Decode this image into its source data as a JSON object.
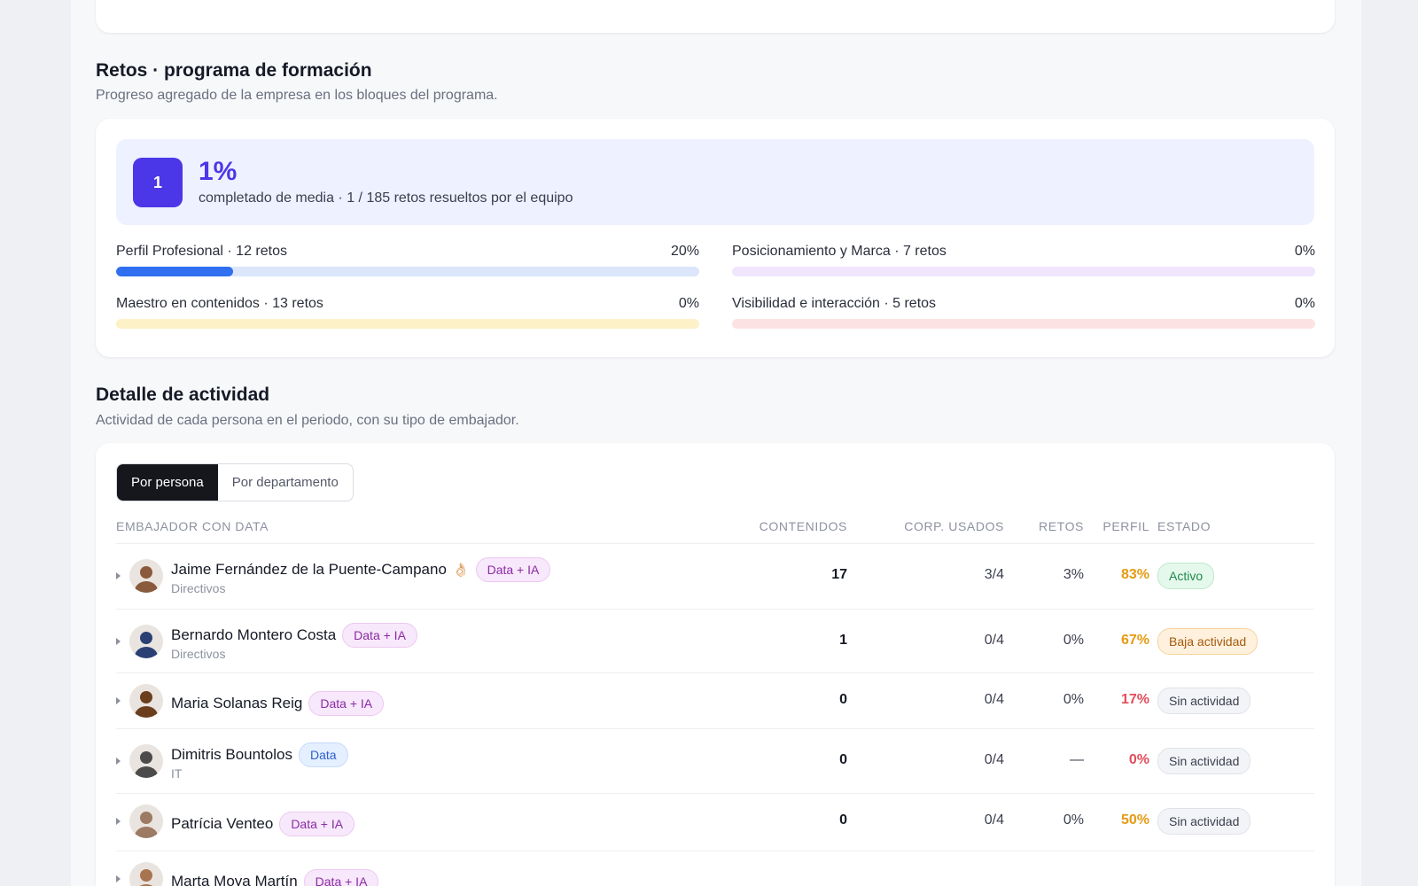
{
  "challenges": {
    "title": "Retos · programa de formación",
    "subtitle": "Progreso agregado de la empresa en los bloques del programa.",
    "summary": {
      "badge": "1",
      "percent": "1%",
      "text": "completado de media · 1 / 185 retos resueltos por el equipo"
    },
    "blocks": [
      {
        "label": "Perfil Profesional · 12 retos",
        "percent_label": "20%",
        "progress": 0.2,
        "track_color": "#dbe6fb",
        "fill_color": "#2f6ff0"
      },
      {
        "label": "Posicionamiento y Marca · 7 retos",
        "percent_label": "0%",
        "progress": 0.0,
        "track_color": "#f0e5fd",
        "fill_color": "#9b5cf0"
      },
      {
        "label": "Maestro en contenidos · 13 retos",
        "percent_label": "0%",
        "progress": 0.0,
        "track_color": "#fdf1c8",
        "fill_color": "#f0b400"
      },
      {
        "label": "Visibilidad e interacción · 5 retos",
        "percent_label": "0%",
        "progress": 0.0,
        "track_color": "#fde2e4",
        "fill_color": "#e84a5a"
      }
    ]
  },
  "activity": {
    "title": "Detalle de actividad",
    "subtitle": "Actividad de cada persona en el periodo, con su tipo de embajador.",
    "tabs": [
      "Por persona",
      "Por departamento"
    ],
    "columns": {
      "ambassador": "EMBAJADOR CON DATA",
      "contents": "CONTENIDOS",
      "corp": "CORP. USADOS",
      "retos": "RETOS",
      "perfil": "PERFIL",
      "estado": "ESTADO"
    },
    "rows": [
      {
        "name": "Jaime Fernández de la Puente-Campano",
        "emoji": "👌🏻",
        "tag": "Data + IA",
        "tag_type": "dataia",
        "dept": "Directivos",
        "contents": "17",
        "corp": "3/4",
        "retos": "3%",
        "perfil": "83%",
        "perfil_color": "#e59b12",
        "status": "Activo",
        "status_type": "activo",
        "avatar_color": "#8a5a3c"
      },
      {
        "name": "Bernardo Montero Costa",
        "emoji": "",
        "tag": "Data + IA",
        "tag_type": "dataia",
        "dept": "Directivos",
        "contents": "1",
        "corp": "0/4",
        "retos": "0%",
        "perfil": "67%",
        "perfil_color": "#e59b12",
        "status": "Baja actividad",
        "status_type": "baja",
        "avatar_color": "#2a3f73"
      },
      {
        "name": "Maria Solanas Reig",
        "emoji": "",
        "tag": "Data + IA",
        "tag_type": "dataia",
        "dept": "",
        "contents": "0",
        "corp": "0/4",
        "retos": "0%",
        "perfil": "17%",
        "perfil_color": "#e24d5c",
        "status": "Sin actividad",
        "status_type": "sin",
        "avatar_color": "#6b3e1e"
      },
      {
        "name": "Dimitris Bountolos",
        "emoji": "",
        "tag": "Data",
        "tag_type": "data",
        "dept": "IT",
        "contents": "0",
        "corp": "0/4",
        "retos": "—",
        "perfil": "0%",
        "perfil_color": "#e24d5c",
        "status": "Sin actividad",
        "status_type": "sin",
        "avatar_color": "#4b4b4b"
      },
      {
        "name": "Patrícia Venteo",
        "emoji": "",
        "tag": "Data + IA",
        "tag_type": "dataia",
        "dept": "",
        "contents": "0",
        "corp": "0/4",
        "retos": "0%",
        "perfil": "50%",
        "perfil_color": "#e59b12",
        "status": "Sin actividad",
        "status_type": "sin",
        "avatar_color": "#9c7a63"
      },
      {
        "name": "Marta Moya Martín",
        "emoji": "",
        "tag": "Data + IA",
        "tag_type": "dataia",
        "dept": "",
        "contents": "",
        "corp": "",
        "retos": "",
        "perfil": "",
        "perfil_color": "#e59b12",
        "status": "",
        "status_type": "sin",
        "avatar_color": "#a8744f"
      }
    ]
  }
}
